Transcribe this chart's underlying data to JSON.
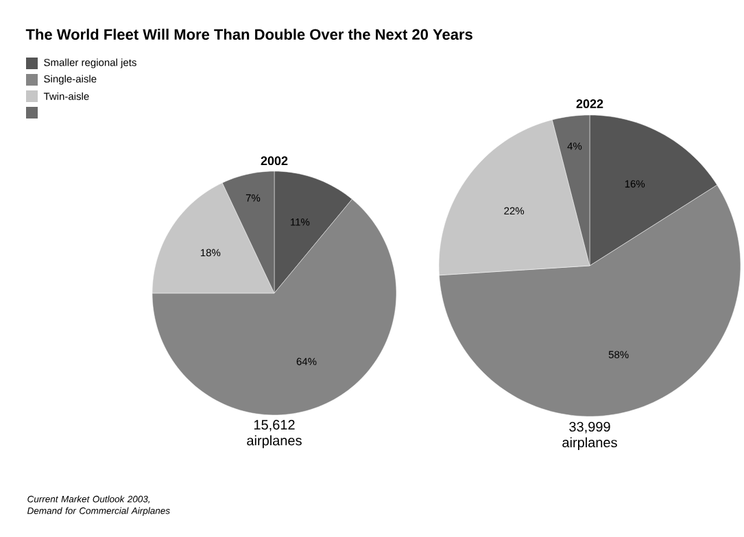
{
  "chart_data": [
    {
      "type": "pie",
      "title": "The World Fleet Will More Than Double Over the Next 20 Years",
      "subtitle": "2002",
      "categories": [
        "Smaller regional jets",
        "Single-aisle",
        "Twin-aisle",
        null
      ],
      "values": [
        11,
        64,
        18,
        7
      ],
      "value_labels": [
        "11%",
        "64%",
        "18%",
        "7%"
      ],
      "colors": [
        "#555555",
        "#858585",
        "#c6c6c6",
        "#6a6a6a"
      ],
      "legend": "top left",
      "annotations": [
        "15,612 airplanes",
        "Current Market Outlook 2003, Demand for Commercial Airplanes"
      ]
    },
    {
      "type": "pie",
      "subtitle": "2022",
      "categories": [
        null,
        null,
        null,
        null
      ],
      "values": [
        16,
        58,
        22,
        4
      ],
      "value_labels": [
        "16%",
        "58%",
        "22%",
        "4%"
      ],
      "colors": [
        "#555555",
        "#858585",
        "#c6c6c6",
        "#6a6a6a"
      ],
      "annotations": [
        "33,999 airplanes"
      ]
    }
  ]
}
